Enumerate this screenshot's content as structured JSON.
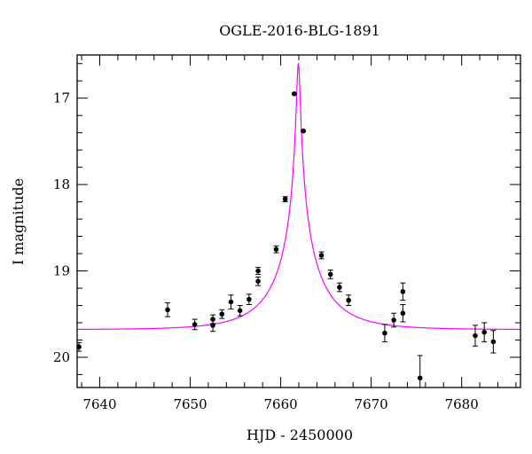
{
  "chart_data": {
    "type": "scatter",
    "title": "OGLE-2016-BLG-1891",
    "xlabel": "HJD - 2450000",
    "ylabel": "I magnitude",
    "xlim": [
      7637.5,
      7686.5
    ],
    "ylim": [
      16.5,
      20.35
    ],
    "y_inverted": true,
    "x_major_ticks": [
      7640,
      7650,
      7660,
      7670,
      7680
    ],
    "x_tick_labels": [
      "7640",
      "7650",
      "7660",
      "7670",
      "7680"
    ],
    "x_minor_step": 2,
    "y_major_ticks": [
      17,
      18,
      19,
      20
    ],
    "y_tick_labels": [
      "17",
      "18",
      "19",
      "20"
    ],
    "y_minor_step": 0.2,
    "grid": false,
    "point_color": "#000000",
    "model_color": "#ff00ff",
    "model": {
      "t0": 7661.95,
      "u0": 0.03,
      "tE": 6.0,
      "base_mag": 19.68,
      "blending_fraction": 0.5
    },
    "points": [
      {
        "x": 7637.7,
        "y": 19.88,
        "err": 0.05
      },
      {
        "x": 7647.5,
        "y": 19.45,
        "err": 0.08
      },
      {
        "x": 7650.5,
        "y": 19.62,
        "err": 0.06
      },
      {
        "x": 7652.5,
        "y": 19.63,
        "err": 0.07
      },
      {
        "x": 7652.5,
        "y": 19.56,
        "err": 0.05
      },
      {
        "x": 7653.5,
        "y": 19.5,
        "err": 0.05
      },
      {
        "x": 7654.5,
        "y": 19.36,
        "err": 0.08
      },
      {
        "x": 7655.5,
        "y": 19.46,
        "err": 0.06
      },
      {
        "x": 7656.5,
        "y": 19.33,
        "err": 0.06
      },
      {
        "x": 7657.5,
        "y": 19.12,
        "err": 0.05
      },
      {
        "x": 7657.5,
        "y": 19.0,
        "err": 0.04
      },
      {
        "x": 7659.5,
        "y": 18.75,
        "err": 0.04
      },
      {
        "x": 7660.5,
        "y": 18.17,
        "err": 0.03
      },
      {
        "x": 7661.5,
        "y": 16.95,
        "err": 0.01
      },
      {
        "x": 7662.5,
        "y": 17.38,
        "err": 0.01
      },
      {
        "x": 7664.5,
        "y": 18.82,
        "err": 0.04
      },
      {
        "x": 7665.5,
        "y": 19.04,
        "err": 0.05
      },
      {
        "x": 7666.5,
        "y": 19.19,
        "err": 0.05
      },
      {
        "x": 7667.5,
        "y": 19.34,
        "err": 0.06
      },
      {
        "x": 7671.5,
        "y": 19.72,
        "err": 0.1
      },
      {
        "x": 7672.5,
        "y": 19.57,
        "err": 0.08
      },
      {
        "x": 7673.5,
        "y": 19.49,
        "err": 0.1
      },
      {
        "x": 7673.5,
        "y": 19.24,
        "err": 0.1
      },
      {
        "x": 7675.4,
        "y": 20.24,
        "err": 0.26
      },
      {
        "x": 7681.5,
        "y": 19.75,
        "err": 0.12
      },
      {
        "x": 7682.5,
        "y": 19.71,
        "err": 0.11
      },
      {
        "x": 7683.5,
        "y": 19.82,
        "err": 0.13
      }
    ]
  }
}
